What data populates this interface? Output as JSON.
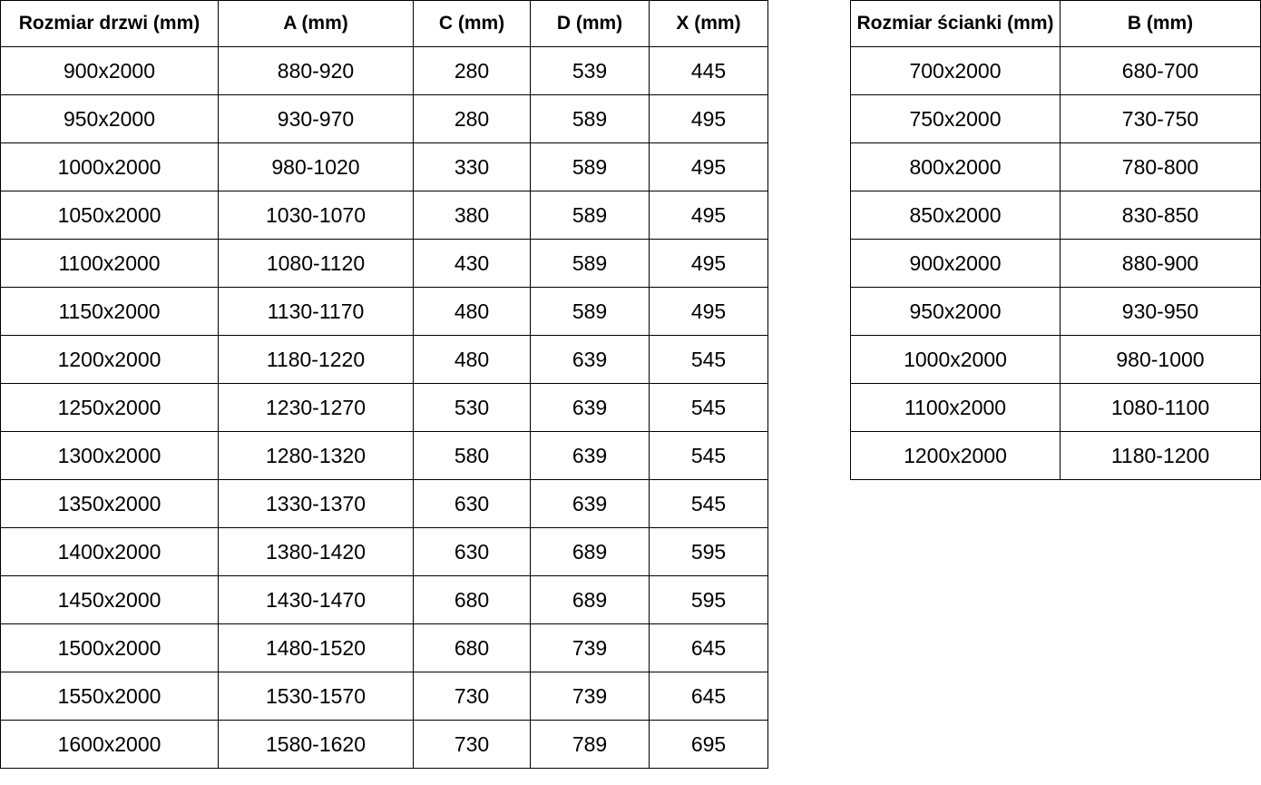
{
  "colors": {
    "text": "#000000",
    "border": "#000000",
    "background": "#ffffff"
  },
  "door_table": {
    "headers": [
      "Rozmiar drzwi (mm)",
      "A (mm)",
      "C (mm)",
      "D (mm)",
      "X (mm)"
    ],
    "rows": [
      [
        "900x2000",
        "880-920",
        "280",
        "539",
        "445"
      ],
      [
        "950x2000",
        "930-970",
        "280",
        "589",
        "495"
      ],
      [
        "1000x2000",
        "980-1020",
        "330",
        "589",
        "495"
      ],
      [
        "1050x2000",
        "1030-1070",
        "380",
        "589",
        "495"
      ],
      [
        "1100x2000",
        "1080-1120",
        "430",
        "589",
        "495"
      ],
      [
        "1150x2000",
        "1130-1170",
        "480",
        "589",
        "495"
      ],
      [
        "1200x2000",
        "1180-1220",
        "480",
        "639",
        "545"
      ],
      [
        "1250x2000",
        "1230-1270",
        "530",
        "639",
        "545"
      ],
      [
        "1300x2000",
        "1280-1320",
        "580",
        "639",
        "545"
      ],
      [
        "1350x2000",
        "1330-1370",
        "630",
        "639",
        "545"
      ],
      [
        "1400x2000",
        "1380-1420",
        "630",
        "689",
        "595"
      ],
      [
        "1450x2000",
        "1430-1470",
        "680",
        "689",
        "595"
      ],
      [
        "1500x2000",
        "1480-1520",
        "680",
        "739",
        "645"
      ],
      [
        "1550x2000",
        "1530-1570",
        "730",
        "739",
        "645"
      ],
      [
        "1600x2000",
        "1580-1620",
        "730",
        "789",
        "695"
      ]
    ]
  },
  "wall_table": {
    "headers": [
      "Rozmiar ścianki (mm)",
      "B (mm)"
    ],
    "rows": [
      [
        "700x2000",
        "680-700"
      ],
      [
        "750x2000",
        "730-750"
      ],
      [
        "800x2000",
        "780-800"
      ],
      [
        "850x2000",
        "830-850"
      ],
      [
        "900x2000",
        "880-900"
      ],
      [
        "950x2000",
        "930-950"
      ],
      [
        "1000x2000",
        "980-1000"
      ],
      [
        "1100x2000",
        "1080-1100"
      ],
      [
        "1200x2000",
        "1180-1200"
      ]
    ]
  }
}
